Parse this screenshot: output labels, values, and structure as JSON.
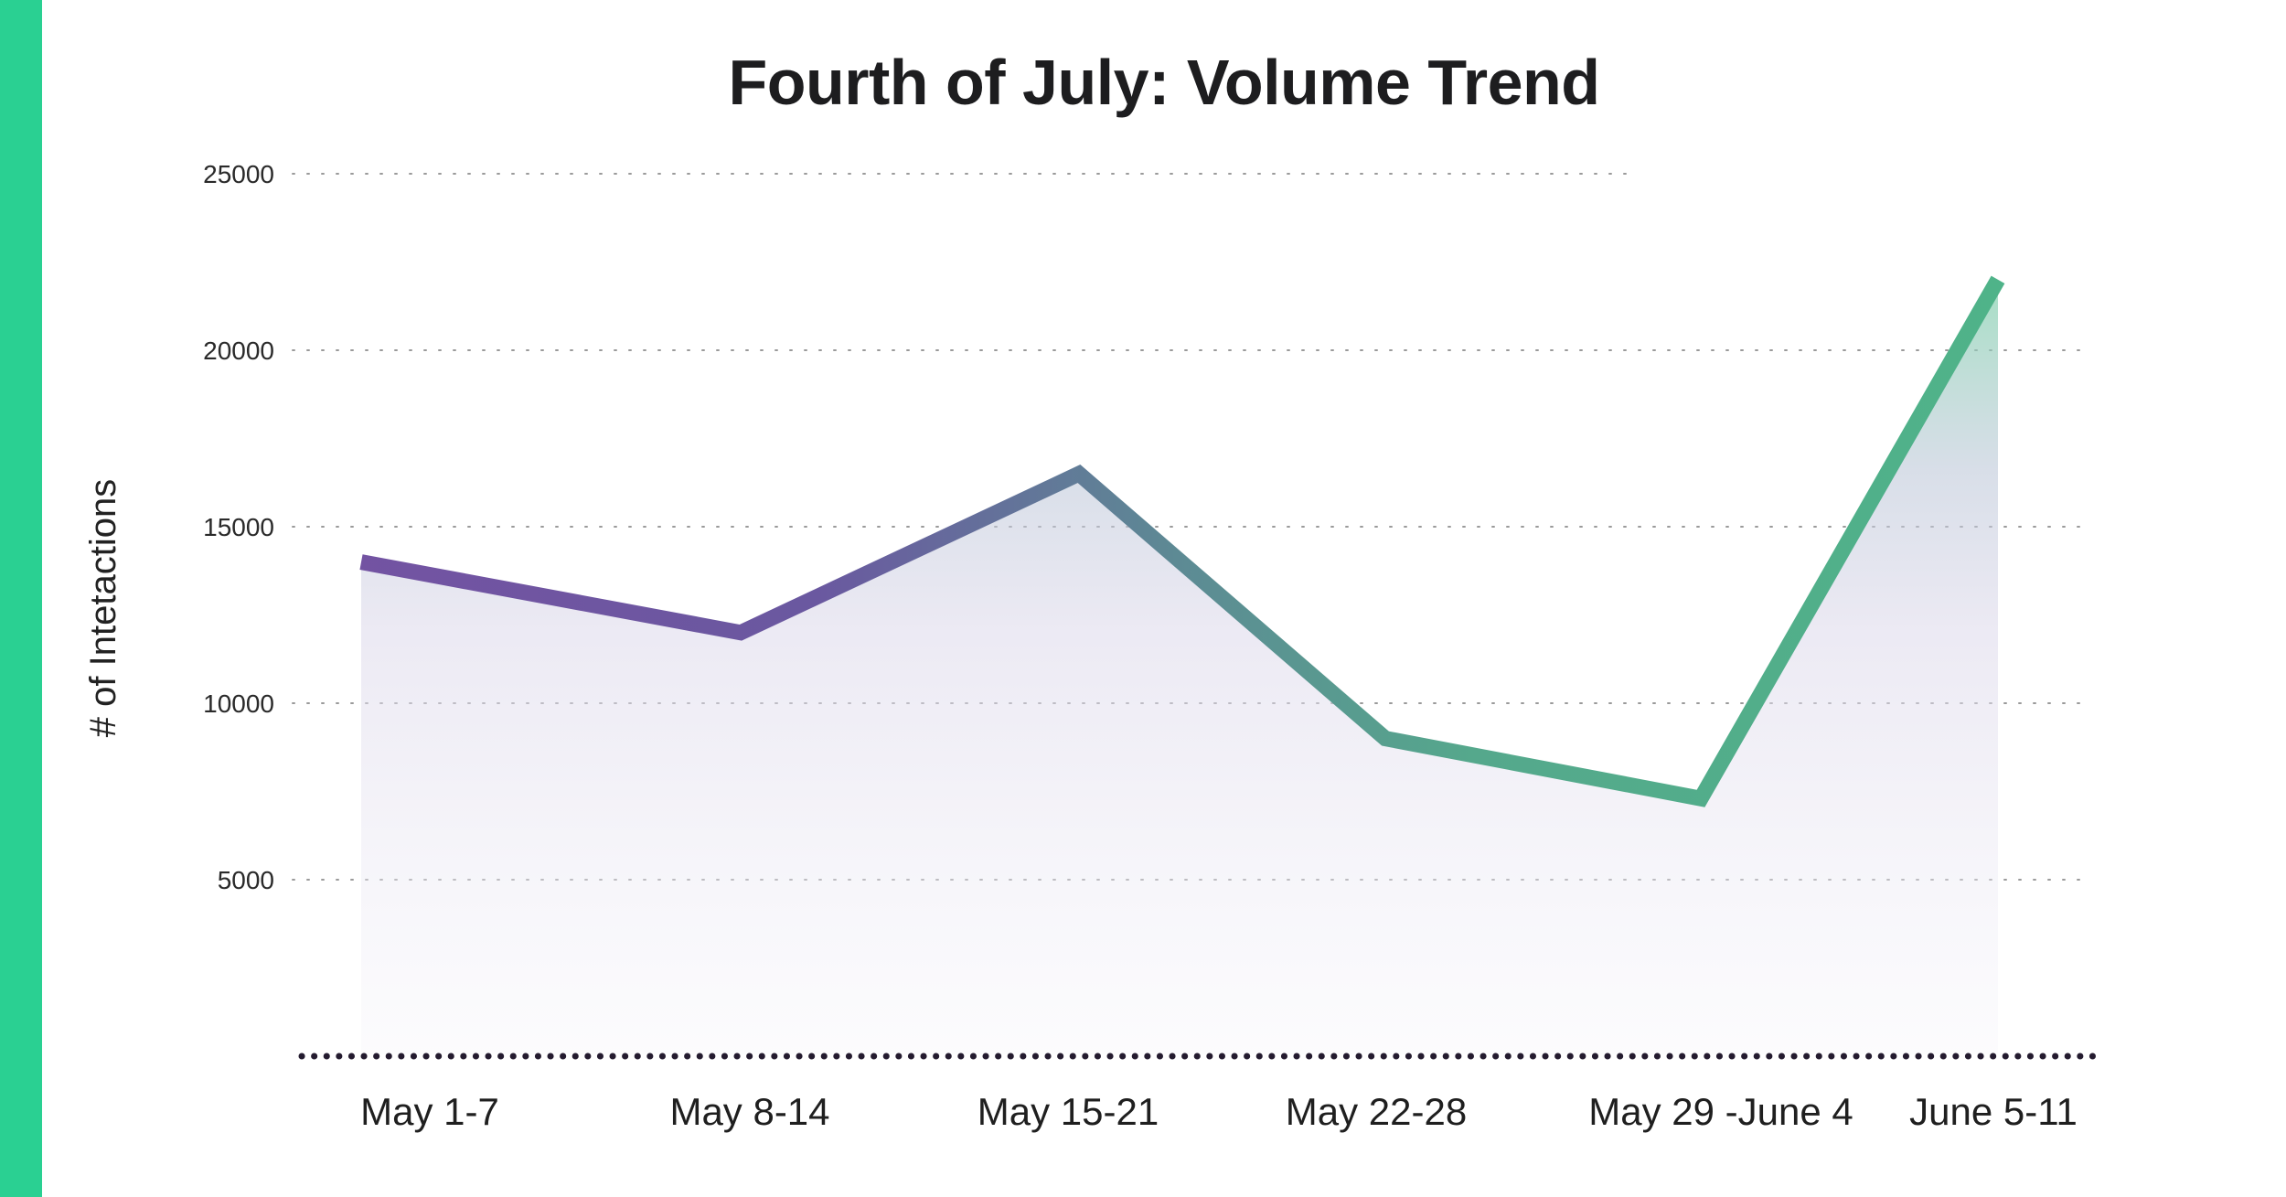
{
  "theme": {
    "accent": "#2ad092",
    "line_start": "#7353a2",
    "line_end": "#4fb389",
    "axis": "#241b2f",
    "grid": "#9a9a9a"
  },
  "chart_data": {
    "type": "area",
    "title": "Fourth of July: Volume Trend",
    "xlabel": "",
    "ylabel": "# of Intetactions",
    "categories": [
      "May 1-7",
      "May 8-14",
      "May 15-21",
      "May 22-28",
      "May 29 -June 4",
      "June 5-11"
    ],
    "series": [
      {
        "values": [
          14000,
          12000,
          16500,
          9000,
          7300,
          22000
        ]
      }
    ],
    "ylim": [
      0,
      25000
    ],
    "yticks": [
      5000,
      10000,
      15000,
      20000,
      25000
    ],
    "grid": true,
    "legend": "none"
  }
}
